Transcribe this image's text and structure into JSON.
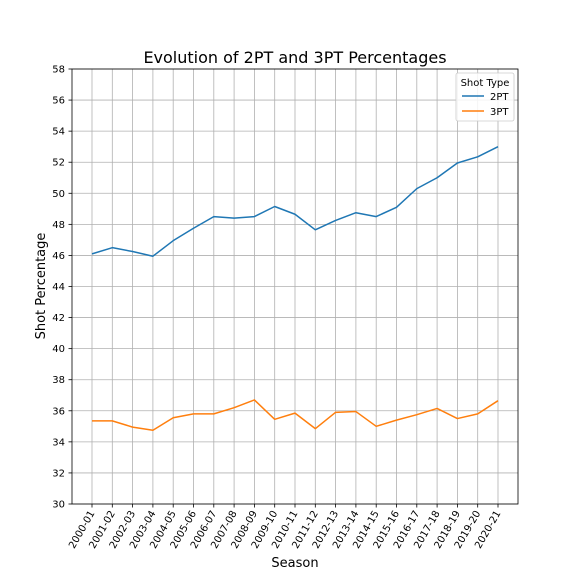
{
  "chart_data": {
    "type": "line",
    "title": "Evolution of 2PT and 3PT Percentages",
    "xlabel": "Season",
    "ylabel": "Shot Percentage",
    "ylim": [
      30,
      58
    ],
    "yticks": [
      30,
      32,
      34,
      36,
      38,
      40,
      42,
      44,
      46,
      48,
      50,
      52,
      54,
      56,
      58
    ],
    "grid": true,
    "legend": {
      "title": "Shot Type",
      "placement": "top-right"
    },
    "categories": [
      "2000-01",
      "2001-02",
      "2002-03",
      "2003-04",
      "2004-05",
      "2005-06",
      "2006-07",
      "2007-08",
      "2008-09",
      "2009-10",
      "2010-11",
      "2011-12",
      "2012-13",
      "2013-14",
      "2014-15",
      "2015-16",
      "2016-17",
      "2017-18",
      "2018-19",
      "2019-20",
      "2020-21"
    ],
    "series": [
      {
        "name": "2PT",
        "color": "#1f77b4",
        "values": [
          46.1,
          46.5,
          46.25,
          45.95,
          46.95,
          47.75,
          48.5,
          48.4,
          48.5,
          49.15,
          48.65,
          47.65,
          48.25,
          48.75,
          48.5,
          49.1,
          50.3,
          51.0,
          51.95,
          52.35,
          53.0
        ]
      },
      {
        "name": "3PT",
        "color": "#ff7f0e",
        "values": [
          35.35,
          35.35,
          34.95,
          34.75,
          35.55,
          35.8,
          35.8,
          36.2,
          36.7,
          35.45,
          35.85,
          34.85,
          35.9,
          35.95,
          35.0,
          35.4,
          35.75,
          36.15,
          35.5,
          35.8,
          36.65
        ]
      }
    ]
  }
}
